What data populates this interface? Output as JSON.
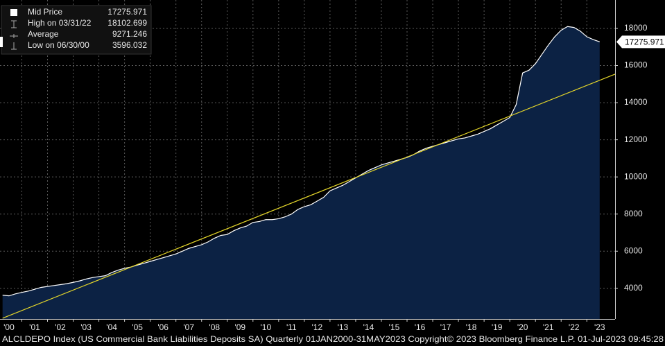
{
  "chart_data": {
    "type": "area",
    "series": [
      {
        "name": "Mid Price",
        "color": "#ffffff",
        "fill": "#0c2244",
        "x": [
          2000.25,
          2000.5,
          2000.75,
          2001,
          2001.25,
          2001.5,
          2001.75,
          2002,
          2002.25,
          2002.5,
          2002.75,
          2003,
          2003.25,
          2003.5,
          2003.75,
          2004,
          2004.25,
          2004.5,
          2004.75,
          2005,
          2005.25,
          2005.5,
          2005.75,
          2006,
          2006.25,
          2006.5,
          2006.75,
          2007,
          2007.25,
          2007.5,
          2007.75,
          2008,
          2008.25,
          2008.5,
          2008.75,
          2009,
          2009.25,
          2009.5,
          2009.75,
          2010,
          2010.25,
          2010.5,
          2010.75,
          2011,
          2011.25,
          2011.5,
          2011.75,
          2012,
          2012.25,
          2012.5,
          2012.75,
          2013,
          2013.25,
          2013.5,
          2013.75,
          2014,
          2014.25,
          2014.5,
          2014.75,
          2015,
          2015.25,
          2015.5,
          2015.75,
          2016,
          2016.25,
          2016.5,
          2016.75,
          2017,
          2017.25,
          2017.5,
          2017.75,
          2018,
          2018.25,
          2018.5,
          2018.75,
          2019,
          2019.25,
          2019.5,
          2019.75,
          2020,
          2020.25,
          2020.5,
          2020.75,
          2021,
          2021.25,
          2021.5,
          2021.75,
          2022,
          2022.25,
          2022.5,
          2022.75,
          2023,
          2023.25,
          2023.5
        ],
        "values": [
          3630,
          3596.032,
          3700,
          3780,
          3850,
          3950,
          4050,
          4100,
          4150,
          4200,
          4250,
          4320,
          4400,
          4500,
          4580,
          4630,
          4680,
          4850,
          4980,
          5080,
          5150,
          5250,
          5350,
          5450,
          5550,
          5650,
          5750,
          5850,
          6000,
          6150,
          6250,
          6350,
          6500,
          6700,
          6850,
          6900,
          7100,
          7250,
          7350,
          7550,
          7600,
          7700,
          7700,
          7750,
          7850,
          8000,
          8250,
          8400,
          8500,
          8700,
          8900,
          9250,
          9400,
          9550,
          9750,
          9950,
          10150,
          10350,
          10500,
          10650,
          10750,
          10850,
          10950,
          11050,
          11200,
          11400,
          11550,
          11650,
          11750,
          11850,
          11950,
          12050,
          12100,
          12200,
          12300,
          12450,
          12600,
          12800,
          13000,
          13200,
          13900,
          15600,
          15750,
          16100,
          16600,
          17100,
          17550,
          17900,
          18102.699,
          18050,
          17850,
          17550,
          17400,
          17275.971
        ]
      }
    ],
    "trend": {
      "color": "#e3d52a",
      "x": [
        2000.25,
        2024.1
      ],
      "values": [
        2390,
        15536
      ]
    },
    "legend_entries": [
      {
        "label": "Mid Price",
        "value": 17275.971
      },
      {
        "label": "High on 03/31/22",
        "value": 18102.699
      },
      {
        "label": "Average",
        "value": 9271.246
      },
      {
        "label": "Low on 06/30/00",
        "value": 3596.032
      }
    ],
    "xlim": [
      2000.15,
      2024.1
    ],
    "ylim": [
      2350,
      19530
    ],
    "xticks": [
      {
        "value": 2000,
        "label": "'00"
      },
      {
        "value": 2001,
        "label": "'01"
      },
      {
        "value": 2002,
        "label": "'02"
      },
      {
        "value": 2003,
        "label": "'03"
      },
      {
        "value": 2004,
        "label": "'04"
      },
      {
        "value": 2005,
        "label": "'05"
      },
      {
        "value": 2006,
        "label": "'06"
      },
      {
        "value": 2007,
        "label": "'07"
      },
      {
        "value": 2008,
        "label": "'08"
      },
      {
        "value": 2009,
        "label": "'09"
      },
      {
        "value": 2010,
        "label": "'10"
      },
      {
        "value": 2011,
        "label": "'11"
      },
      {
        "value": 2012,
        "label": "'12"
      },
      {
        "value": 2013,
        "label": "'13"
      },
      {
        "value": 2014,
        "label": "'14"
      },
      {
        "value": 2015,
        "label": "'15"
      },
      {
        "value": 2016,
        "label": "'16"
      },
      {
        "value": 2017,
        "label": "'17"
      },
      {
        "value": 2018,
        "label": "'18"
      },
      {
        "value": 2019,
        "label": "'19"
      },
      {
        "value": 2020,
        "label": "'20"
      },
      {
        "value": 2021,
        "label": "'21"
      },
      {
        "value": 2022,
        "label": "'22"
      },
      {
        "value": 2023,
        "label": "'23"
      }
    ],
    "yticks": [
      4000,
      6000,
      8000,
      10000,
      12000,
      14000,
      16000,
      18000
    ],
    "grid": true,
    "footer": "ALCLDEPO Index (US Commercial Bank Liabilities Deposits SA)  Quarterly 01JAN2000-31MAY2023 Copyright© 2023 Bloomberg Finance L.P.  01-Jul-2023 09:45:28"
  }
}
